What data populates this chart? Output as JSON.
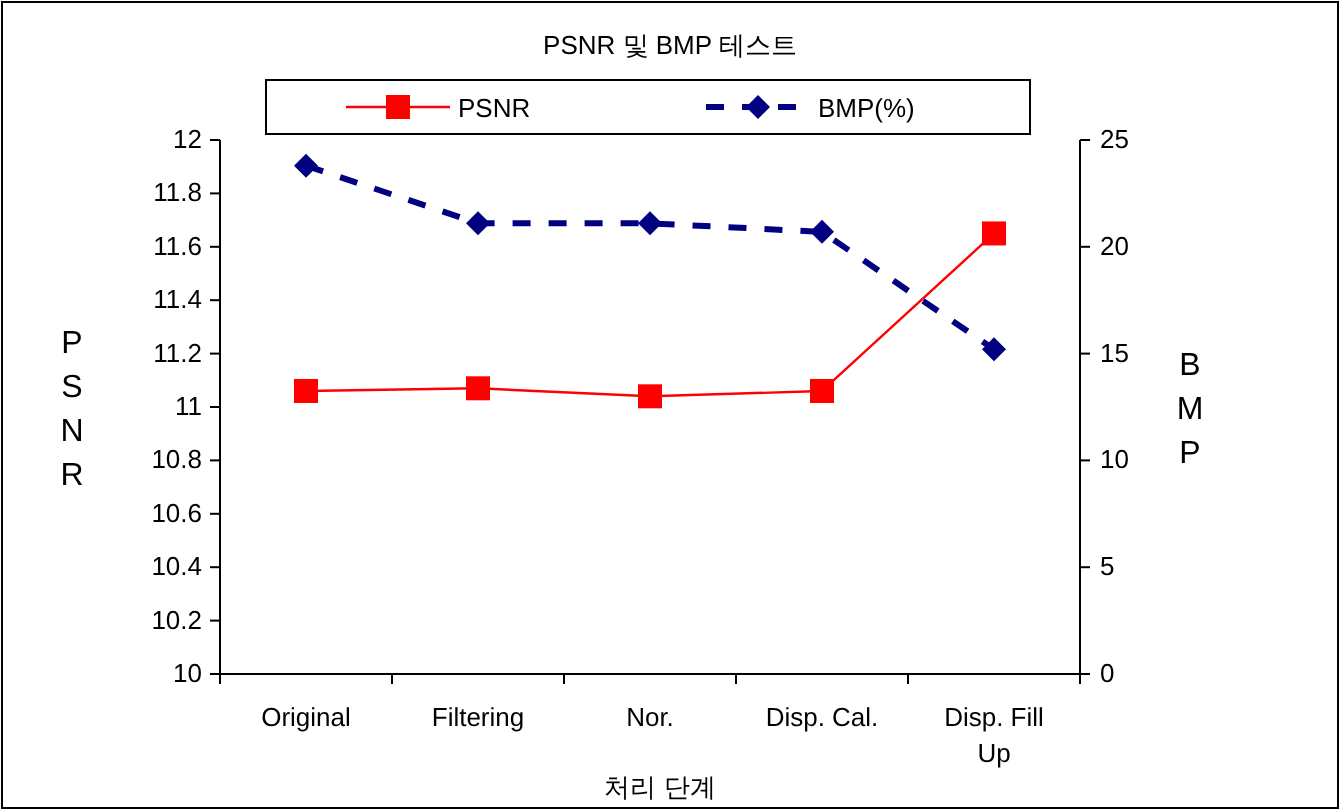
{
  "chart_data": {
    "type": "line",
    "title": "PSNR 및 BMP 테스트",
    "xlabel": "처리 단계",
    "ylabel": "PSNR",
    "y2label": "BMP",
    "categories": [
      "Original",
      "Filtering",
      "Nor.",
      "Disp. Cal.",
      "Disp. Fill Up"
    ],
    "series": [
      {
        "name": "PSNR",
        "color": "#ff0000",
        "values": [
          11.06,
          11.07,
          11.04,
          11.06,
          11.65
        ],
        "marker": "square",
        "line_style": "solid"
      },
      {
        "name": "BMP(%)",
        "color": "#000080",
        "values": [
          23.8,
          21.1,
          21.1,
          20.7,
          15.2
        ],
        "marker": "diamond",
        "line_style": "dashed",
        "axis": "y2"
      }
    ],
    "ylim": [
      10,
      12
    ],
    "yticks": [
      10,
      10.2,
      10.4,
      10.6,
      10.8,
      11,
      11.2,
      11.4,
      11.6,
      11.8,
      12
    ],
    "y2lim": [
      0,
      25
    ],
    "y2ticks": [
      0,
      5,
      10,
      15,
      20,
      25
    ],
    "grid": false,
    "legend": "top"
  }
}
